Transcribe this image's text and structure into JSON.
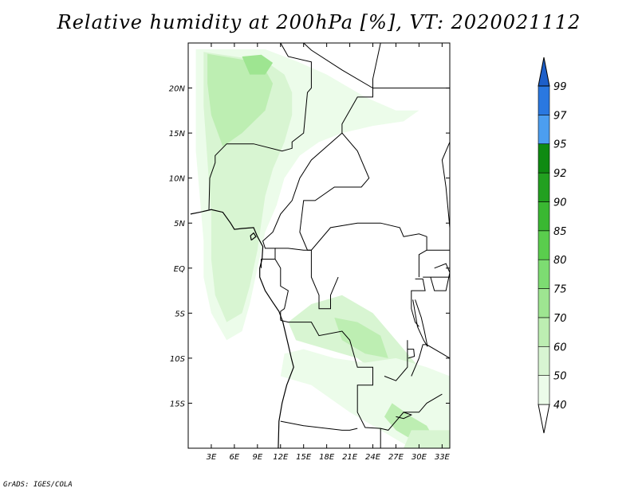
{
  "title": "Relative humidity at 200hPa [%], VT: 2020021112",
  "credit": "GrADS: IGES/COLA",
  "map": {
    "lon_range": [
      0,
      34
    ],
    "lat_range": [
      -20,
      25
    ],
    "lon_ticks": [
      {
        "value": 3,
        "label": "3E"
      },
      {
        "value": 6,
        "label": "6E"
      },
      {
        "value": 9,
        "label": "9E"
      },
      {
        "value": 12,
        "label": "12E"
      },
      {
        "value": 15,
        "label": "15E"
      },
      {
        "value": 18,
        "label": "18E"
      },
      {
        "value": 21,
        "label": "21E"
      },
      {
        "value": 24,
        "label": "24E"
      },
      {
        "value": 27,
        "label": "27E"
      },
      {
        "value": 30,
        "label": "30E"
      },
      {
        "value": 33,
        "label": "33E"
      }
    ],
    "lat_ticks": [
      {
        "value": 20,
        "label": "20N"
      },
      {
        "value": 15,
        "label": "15N"
      },
      {
        "value": 10,
        "label": "10N"
      },
      {
        "value": 5,
        "label": "5N"
      },
      {
        "value": 0,
        "label": "EQ"
      },
      {
        "value": -5,
        "label": "5S"
      },
      {
        "value": -10,
        "label": "10S"
      },
      {
        "value": -15,
        "label": "15S"
      }
    ],
    "humidity_regions": [
      {
        "level": 40,
        "points": [
          [
            0.5,
            24.5
          ],
          [
            5,
            24.5
          ],
          [
            9,
            24.5
          ],
          [
            13,
            24.3
          ],
          [
            17,
            23
          ],
          [
            21,
            21
          ],
          [
            25,
            19
          ],
          [
            29,
            18
          ],
          [
            33,
            20
          ],
          [
            34,
            21
          ],
          [
            34,
            16.5
          ],
          [
            30,
            16
          ],
          [
            26,
            15.5
          ],
          [
            22,
            14.5
          ],
          [
            18,
            13.5
          ],
          [
            15,
            12
          ],
          [
            13,
            10
          ],
          [
            11.5,
            7
          ],
          [
            10,
            3
          ],
          [
            9,
            -1
          ],
          [
            8,
            -5
          ],
          [
            7,
            -8
          ],
          [
            6,
            -10
          ],
          [
            4,
            -9
          ],
          [
            2,
            -5
          ],
          [
            1.5,
            -1
          ],
          [
            1,
            3
          ],
          [
            1,
            8
          ],
          [
            0.5,
            12
          ]
        ]
      },
      {
        "level": 50,
        "points": [
          [
            1,
            24.3
          ],
          [
            5,
            24.3
          ],
          [
            10,
            24.3
          ],
          [
            14,
            23
          ],
          [
            18,
            21.5
          ],
          [
            23,
            19
          ],
          [
            27,
            17.5
          ],
          [
            30,
            17.5
          ],
          [
            28,
            16.3
          ],
          [
            24,
            15.8
          ],
          [
            20,
            15
          ],
          [
            17,
            14
          ],
          [
            14.5,
            12.5
          ],
          [
            12.5,
            10
          ],
          [
            11.5,
            7
          ],
          [
            10,
            4
          ],
          [
            9,
            0
          ],
          [
            8,
            -4
          ],
          [
            7,
            -7
          ],
          [
            5,
            -8
          ],
          [
            3,
            -5
          ],
          [
            2,
            -1
          ],
          [
            2,
            3
          ],
          [
            1.5,
            8
          ],
          [
            1,
            13
          ]
        ]
      },
      {
        "level": 60,
        "points": [
          [
            2,
            24
          ],
          [
            6,
            23.5
          ],
          [
            10,
            23
          ],
          [
            12.5,
            21.5
          ],
          [
            13.5,
            19.5
          ],
          [
            13.5,
            17
          ],
          [
            12.5,
            14
          ],
          [
            11,
            11
          ],
          [
            10,
            8
          ],
          [
            9.5,
            5
          ],
          [
            9,
            2
          ],
          [
            8,
            -2
          ],
          [
            7,
            -5
          ],
          [
            5,
            -6
          ],
          [
            3.5,
            -3
          ],
          [
            3,
            1
          ],
          [
            3,
            6
          ],
          [
            2.5,
            12
          ],
          [
            2,
            18
          ]
        ]
      },
      {
        "level": 70,
        "points": [
          [
            2.5,
            23.8
          ],
          [
            6,
            23.3
          ],
          [
            9.5,
            22.8
          ],
          [
            11,
            20.5
          ],
          [
            10,
            17.5
          ],
          [
            7,
            15
          ],
          [
            4.5,
            13.5
          ],
          [
            3,
            17
          ],
          [
            2.5,
            20.5
          ]
        ]
      },
      {
        "level": 75,
        "points": [
          [
            7,
            23.5
          ],
          [
            9.5,
            23.7
          ],
          [
            11,
            22.8
          ],
          [
            10,
            21.5
          ],
          [
            8,
            21.5
          ]
        ]
      },
      {
        "level": 60,
        "points": [
          [
            14,
            -8
          ],
          [
            18,
            -9
          ],
          [
            22,
            -10
          ],
          [
            25,
            -12
          ],
          [
            28,
            -13
          ],
          [
            30,
            -14
          ],
          [
            30,
            -11
          ],
          [
            27,
            -8
          ],
          [
            24,
            -5
          ],
          [
            20,
            -3
          ],
          [
            16,
            -4
          ],
          [
            13,
            -6
          ]
        ]
      },
      {
        "level": 70,
        "points": [
          [
            19,
            -5.5
          ],
          [
            22,
            -6
          ],
          [
            25,
            -7.5
          ],
          [
            26,
            -10
          ],
          [
            23,
            -9.5
          ],
          [
            20,
            -8
          ]
        ]
      },
      {
        "level": 50,
        "points": [
          [
            12,
            -12
          ],
          [
            16,
            -13
          ],
          [
            21,
            -16
          ],
          [
            25,
            -18
          ],
          [
            29,
            -20
          ],
          [
            34,
            -20
          ],
          [
            34,
            -12
          ],
          [
            31,
            -11
          ],
          [
            27,
            -10
          ],
          [
            23,
            -10.5
          ],
          [
            19,
            -10
          ],
          [
            15,
            -9
          ],
          [
            12.5,
            -9.5
          ]
        ]
      },
      {
        "level": 70,
        "points": [
          [
            26.5,
            -15
          ],
          [
            29,
            -16.5
          ],
          [
            31,
            -17.5
          ],
          [
            32,
            -19
          ],
          [
            30,
            -19.5
          ],
          [
            27,
            -18
          ],
          [
            25.5,
            -16.5
          ]
        ]
      },
      {
        "level": 60,
        "points": [
          [
            29,
            -18
          ],
          [
            34,
            -18
          ],
          [
            34,
            -20
          ],
          [
            28,
            -20
          ]
        ]
      }
    ],
    "borders": [
      [
        [
          12,
          25
        ],
        [
          13,
          23.5
        ],
        [
          16,
          22.9
        ],
        [
          16,
          20
        ],
        [
          15.5,
          19.5
        ],
        [
          15,
          15
        ],
        [
          13.5,
          14
        ],
        [
          13.5,
          13.3
        ],
        [
          12.2,
          13
        ],
        [
          8.5,
          13.8
        ],
        [
          5,
          13.8
        ],
        [
          3.5,
          12.5
        ],
        [
          3.5,
          11.7
        ],
        [
          2.8,
          10
        ],
        [
          2.7,
          6.5
        ]
      ],
      [
        [
          12,
          25
        ],
        [
          15,
          25
        ],
        [
          16,
          24.2
        ],
        [
          20,
          22
        ],
        [
          24,
          20
        ],
        [
          24,
          19
        ],
        [
          22,
          19
        ],
        [
          20,
          16
        ],
        [
          20,
          15
        ],
        [
          22,
          13
        ],
        [
          23.5,
          10
        ],
        [
          22.5,
          9
        ],
        [
          19,
          9
        ],
        [
          16.5,
          7.5
        ],
        [
          15,
          7.5
        ],
        [
          14.5,
          4
        ],
        [
          15.5,
          2
        ],
        [
          16,
          2
        ],
        [
          18.5,
          4.5
        ],
        [
          22,
          5
        ],
        [
          25,
          5
        ],
        [
          27.5,
          4.5
        ],
        [
          28,
          3.5
        ],
        [
          30,
          3.8
        ],
        [
          31,
          3.5
        ],
        [
          31,
          2
        ],
        [
          30,
          1.5
        ],
        [
          30,
          -1
        ]
      ],
      [
        [
          20,
          15
        ],
        [
          16,
          12
        ],
        [
          14.5,
          10
        ],
        [
          13.5,
          7.5
        ],
        [
          12,
          6
        ],
        [
          11,
          4
        ],
        [
          9.7,
          3
        ],
        [
          10,
          2.2
        ],
        [
          11.3,
          2.2
        ],
        [
          11.3,
          1
        ],
        [
          9.5,
          1
        ],
        [
          9.5,
          0
        ]
      ],
      [
        [
          11.3,
          2.2
        ],
        [
          13,
          2.2
        ],
        [
          15,
          2
        ],
        [
          16,
          2
        ],
        [
          16,
          -1
        ],
        [
          17,
          -3
        ],
        [
          17,
          -4.5
        ],
        [
          18.5,
          -4.5
        ],
        [
          18.5,
          -3
        ],
        [
          19.5,
          -1
        ]
      ],
      [
        [
          11.3,
          1
        ],
        [
          12,
          0
        ],
        [
          12,
          -2
        ],
        [
          13,
          -2.5
        ],
        [
          12.5,
          -4.5
        ],
        [
          12,
          -4.8
        ],
        [
          12,
          -5.8
        ]
      ],
      [
        [
          12,
          -5.8
        ],
        [
          13,
          -6
        ],
        [
          16,
          -6
        ],
        [
          17,
          -7.5
        ],
        [
          20,
          -7
        ],
        [
          21,
          -8
        ],
        [
          22,
          -11
        ],
        [
          24,
          -11
        ],
        [
          24,
          -13
        ],
        [
          22,
          -13
        ],
        [
          22,
          -16
        ],
        [
          23,
          -17.7
        ],
        [
          25,
          -17.8
        ],
        [
          26,
          -18
        ],
        [
          27,
          -17
        ],
        [
          28,
          -16
        ],
        [
          30,
          -16
        ],
        [
          31,
          -15
        ],
        [
          33,
          -14
        ]
      ],
      [
        [
          12,
          -17
        ],
        [
          15,
          -17.5
        ],
        [
          20,
          -18
        ],
        [
          21,
          -18
        ],
        [
          22,
          -17.8
        ]
      ],
      [
        [
          25,
          -17.8
        ],
        [
          25,
          -20
        ]
      ],
      [
        [
          29,
          -12
        ],
        [
          30,
          -10
        ],
        [
          30.5,
          -8.5
        ],
        [
          31,
          -8.5
        ],
        [
          33,
          -9.5
        ],
        [
          34,
          -10
        ]
      ],
      [
        [
          25.5,
          -12
        ],
        [
          27,
          -12.5
        ],
        [
          28.5,
          -11
        ],
        [
          28.5,
          -8
        ]
      ],
      [
        [
          29.5,
          -1.2
        ],
        [
          30.5,
          -1.2
        ],
        [
          30.8,
          -2.5
        ],
        [
          29,
          -2.5
        ],
        [
          29,
          -4.5
        ],
        [
          29.5,
          -6
        ],
        [
          30,
          -6.5
        ]
      ],
      [
        [
          30.5,
          -1
        ],
        [
          34,
          -1
        ]
      ],
      [
        [
          31,
          2
        ],
        [
          34,
          2
        ]
      ],
      [
        [
          34,
          4.5
        ],
        [
          33.5,
          9
        ],
        [
          33,
          12
        ],
        [
          34,
          14
        ]
      ],
      [
        [
          25,
          25
        ],
        [
          24,
          21
        ],
        [
          24,
          20
        ]
      ],
      [
        [
          24,
          20
        ],
        [
          34,
          20
        ]
      ]
    ],
    "coastline": [
      [
        [
          0.3,
          6
        ],
        [
          1.5,
          6.2
        ],
        [
          3,
          6.5
        ],
        [
          4.5,
          6.2
        ],
        [
          5.5,
          5
        ],
        [
          6,
          4.3
        ],
        [
          7,
          4.4
        ],
        [
          8.5,
          4.5
        ],
        [
          9,
          3.5
        ],
        [
          9.7,
          2.4
        ],
        [
          9.6,
          1
        ],
        [
          9.3,
          0
        ],
        [
          9.3,
          -1
        ],
        [
          10,
          -2.5
        ],
        [
          11,
          -3.8
        ],
        [
          11.8,
          -4.8
        ],
        [
          12.3,
          -6
        ],
        [
          13,
          -8.5
        ],
        [
          13.4,
          -10
        ],
        [
          13.7,
          -11
        ],
        [
          12.8,
          -13
        ],
        [
          12.2,
          -15
        ],
        [
          11.8,
          -17
        ],
        [
          11.7,
          -20
        ]
      ],
      [
        [
          8.2,
          3.1
        ],
        [
          8.8,
          3.5
        ],
        [
          8.5,
          3.9
        ],
        [
          8.1,
          3.6
        ],
        [
          8.2,
          3.1
        ]
      ]
    ],
    "lakes": [
      [
        [
          32,
          0
        ],
        [
          33.5,
          0.5
        ],
        [
          34,
          -0.5
        ],
        [
          33.5,
          -2.5
        ],
        [
          32,
          -2.5
        ],
        [
          31.5,
          -1
        ]
      ],
      [
        [
          29.2,
          -3.5
        ],
        [
          29.5,
          -5
        ],
        [
          29.8,
          -6.5
        ],
        [
          30.6,
          -8
        ],
        [
          31.1,
          -8.7
        ],
        [
          30.7,
          -7
        ],
        [
          30.3,
          -5.5
        ],
        [
          29.5,
          -3.5
        ]
      ],
      [
        [
          34,
          -9.5
        ],
        [
          34.5,
          -11
        ],
        [
          34.5,
          -13
        ],
        [
          34.3,
          -14
        ]
      ],
      [
        [
          28.5,
          -9
        ],
        [
          29.3,
          -9
        ],
        [
          29.4,
          -9.8
        ],
        [
          28.6,
          -10
        ]
      ],
      [
        [
          27,
          -16.5
        ],
        [
          28,
          -16.7
        ],
        [
          29,
          -16.3
        ],
        [
          28,
          -16
        ]
      ]
    ]
  },
  "colorbar": {
    "levels": [
      {
        "label": "40",
        "color": "#ffffff"
      },
      {
        "label": "50",
        "color": "#ecfcea"
      },
      {
        "label": "60",
        "color": "#d8f5d2"
      },
      {
        "label": "70",
        "color": "#bdeeb2"
      },
      {
        "label": "75",
        "color": "#9ee591"
      },
      {
        "label": "80",
        "color": "#7ddc72"
      },
      {
        "label": "85",
        "color": "#5acd4d"
      },
      {
        "label": "90",
        "color": "#3ab832"
      },
      {
        "label": "92",
        "color": "#22a020"
      },
      {
        "label": "95",
        "color": "#0f8a12"
      },
      {
        "label": "97",
        "color": "#4c9ef0"
      },
      {
        "label": "99",
        "color": "#2a78e0"
      }
    ],
    "top_color": "#1d5fc9"
  }
}
